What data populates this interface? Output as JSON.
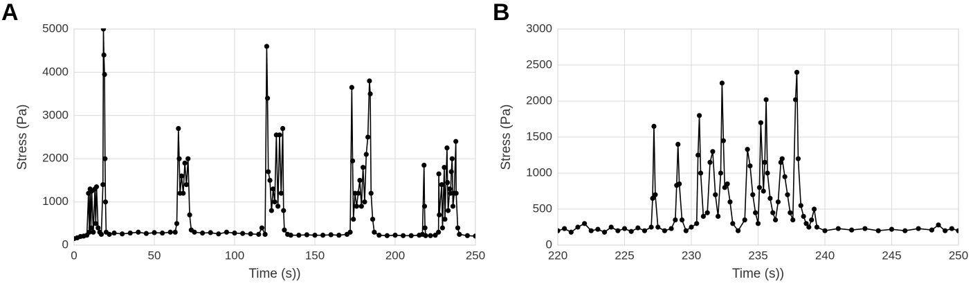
{
  "chart_data": [
    {
      "type": "line",
      "label": "A",
      "xlabel": "Time (s))",
      "ylabel": "Stress (Pa)",
      "color": "#000000",
      "grid": true,
      "xlim": [
        0,
        250
      ],
      "ylim": [
        0,
        5000
      ],
      "xticks": [
        0,
        50,
        100,
        150,
        200,
        250
      ],
      "yticks": [
        0,
        1000,
        2000,
        3000,
        4000,
        5000
      ],
      "x": [
        0,
        2,
        4,
        6,
        8,
        9,
        9.5,
        10,
        10.5,
        11,
        12,
        13,
        13.5,
        14,
        15,
        16,
        17,
        18,
        18.3,
        18.6,
        19,
        19.3,
        19.6,
        20,
        22,
        25,
        30,
        35,
        40,
        45,
        50,
        55,
        60,
        63,
        64,
        65,
        65.5,
        66,
        67,
        68,
        69,
        70,
        71,
        72,
        73,
        75,
        80,
        85,
        90,
        95,
        100,
        105,
        110,
        115,
        117,
        119,
        120,
        120.5,
        121,
        122,
        123,
        124,
        125,
        126,
        127,
        128,
        129,
        130,
        130.5,
        131,
        133,
        135,
        140,
        145,
        150,
        155,
        160,
        165,
        170,
        172,
        173,
        173.5,
        174,
        175,
        176,
        177,
        178,
        179,
        180,
        181,
        182,
        183,
        184,
        184.5,
        185,
        186,
        187,
        190,
        195,
        200,
        205,
        210,
        215,
        217,
        218,
        218.3,
        218.6,
        219,
        222,
        225,
        227,
        227.2,
        227.5,
        229,
        229.5,
        230.6,
        231,
        232.3,
        232.6,
        233,
        234,
        234.5,
        235,
        235.5,
        236,
        236.8,
        237.8,
        238,
        239,
        240,
        245,
        250
      ],
      "values": [
        150,
        170,
        200,
        210,
        230,
        1200,
        300,
        1300,
        400,
        1250,
        300,
        1300,
        500,
        1350,
        400,
        300,
        250,
        1400,
        5000,
        4400,
        3950,
        2000,
        1000,
        300,
        250,
        280,
        260,
        280,
        300,
        270,
        290,
        280,
        300,
        300,
        500,
        2700,
        2000,
        1200,
        1600,
        1200,
        1900,
        1400,
        2000,
        700,
        350,
        300,
        280,
        290,
        260,
        300,
        280,
        270,
        260,
        250,
        400,
        250,
        4600,
        3400,
        1700,
        1500,
        800,
        1300,
        1000,
        2550,
        900,
        2550,
        1200,
        2700,
        800,
        350,
        250,
        230,
        230,
        240,
        230,
        230,
        240,
        230,
        250,
        300,
        3650,
        1950,
        600,
        1200,
        900,
        1200,
        1500,
        900,
        1800,
        1000,
        2100,
        2500,
        3800,
        3500,
        1200,
        600,
        300,
        230,
        220,
        230,
        220,
        220,
        230,
        250,
        1850,
        900,
        400,
        220,
        220,
        230,
        300,
        1650,
        700,
        1400,
        400,
        1800,
        600,
        2250,
        1450,
        800,
        1300,
        1200,
        1700,
        2000,
        900,
        1200,
        2400,
        1200,
        400,
        250,
        220,
        210
      ]
    },
    {
      "type": "line",
      "label": "B",
      "xlabel": "Time (s))",
      "ylabel": "Stress (Pa)",
      "color": "#000000",
      "grid": true,
      "xlim": [
        220,
        250
      ],
      "ylim": [
        0,
        3000
      ],
      "xticks": [
        220,
        225,
        230,
        235,
        240,
        245,
        250
      ],
      "yticks": [
        0,
        500,
        1000,
        1500,
        2000,
        2500,
        3000
      ],
      "x": [
        220,
        220.5,
        221,
        221.5,
        222,
        222.5,
        223,
        223.5,
        224,
        224.5,
        225,
        225.5,
        226,
        226.5,
        227,
        227.1,
        227.2,
        227.3,
        227.5,
        228,
        228.5,
        228.8,
        228.9,
        229,
        229.1,
        229.3,
        229.6,
        230,
        230.4,
        230.5,
        230.6,
        230.7,
        230.9,
        231.2,
        231.4,
        231.6,
        231.8,
        232,
        232.2,
        232.3,
        232.4,
        232.5,
        232.7,
        232.9,
        233.1,
        233.5,
        234,
        234.2,
        234.4,
        234.6,
        234.8,
        235,
        235.1,
        235.2,
        235.4,
        235.5,
        235.6,
        235.7,
        235.9,
        236.1,
        236.3,
        236.5,
        236.7,
        236.8,
        237,
        237.2,
        237.4,
        237.6,
        237.8,
        237.9,
        238,
        238.2,
        238.4,
        238.6,
        238.8,
        239,
        239.2,
        239.4,
        240,
        241,
        242,
        243,
        244,
        245,
        246,
        247,
        248,
        248.5,
        249,
        249.5,
        250
      ],
      "values": [
        200,
        230,
        180,
        250,
        300,
        200,
        220,
        180,
        250,
        200,
        230,
        190,
        240,
        200,
        250,
        650,
        1650,
        700,
        250,
        200,
        230,
        350,
        830,
        1400,
        850,
        350,
        200,
        250,
        300,
        1250,
        1800,
        1000,
        400,
        450,
        1150,
        1300,
        700,
        400,
        1000,
        2250,
        1450,
        800,
        850,
        600,
        300,
        200,
        350,
        1330,
        1100,
        700,
        450,
        300,
        800,
        1700,
        750,
        1150,
        2020,
        1000,
        650,
        450,
        350,
        600,
        1150,
        1200,
        950,
        700,
        450,
        350,
        2020,
        2400,
        1200,
        550,
        400,
        300,
        250,
        350,
        500,
        250,
        200,
        230,
        210,
        230,
        200,
        220,
        200,
        230,
        210,
        280,
        200,
        230,
        200
      ]
    }
  ]
}
